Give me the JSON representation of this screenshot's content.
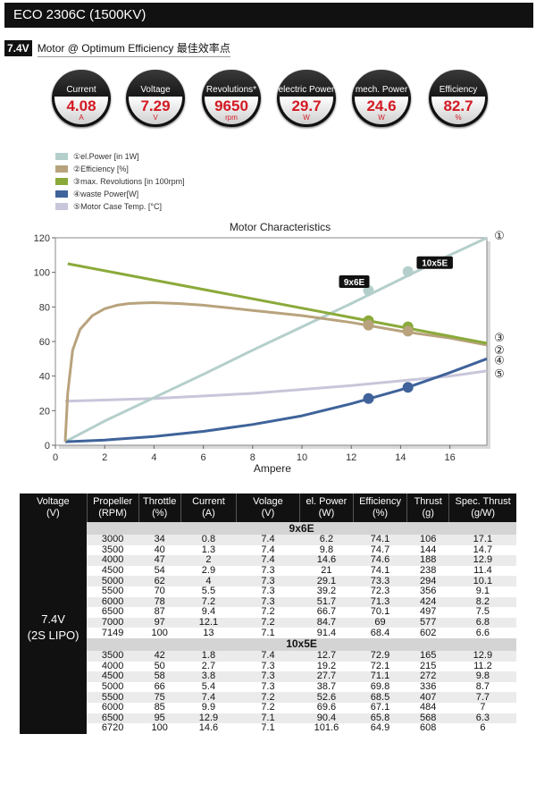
{
  "header": {
    "title": "ECO 2306C (1500KV)",
    "voltage_badge": "7.4V",
    "subtitle": "Motor @ Optimum Efficiency  最佳效率点"
  },
  "stats": [
    {
      "label": "Current",
      "value": "4.08",
      "unit": "A"
    },
    {
      "label": "Voltage",
      "value": "7.29",
      "unit": "V"
    },
    {
      "label": "Revolutions*",
      "value": "9650",
      "unit": "rpm"
    },
    {
      "label": "electric Power",
      "value": "29.7",
      "unit": "W"
    },
    {
      "label": "mech. Power",
      "value": "24.6",
      "unit": "W"
    },
    {
      "label": "Efficiency",
      "value": "82.7",
      "unit": "%"
    }
  ],
  "legend": [
    {
      "label": "①el.Power [in 1W]",
      "color": "#b4cfcb"
    },
    {
      "label": "②Efficiency [%]",
      "color": "#b8a37d"
    },
    {
      "label": "③max. Revolutions [in 100rpm]",
      "color": "#8aaa3a"
    },
    {
      "label": "④waste Power[W]",
      "color": "#3f639a"
    },
    {
      "label": "⑤Motor Case Temp. [°C]",
      "color": "#c8c6da"
    }
  ],
  "chart_data": {
    "type": "line",
    "title": "Motor Characteristics",
    "xlabel": "Ampere",
    "ylabel": "",
    "xlim": [
      0,
      17.5
    ],
    "ylim": [
      0,
      120
    ],
    "xticks": [
      0,
      2,
      4,
      6,
      8,
      10,
      12,
      14,
      16
    ],
    "yticks": [
      0,
      20,
      40,
      60,
      80,
      100,
      120
    ],
    "grid": false,
    "series": [
      {
        "name": "el.Power",
        "marker": "①",
        "color": "#b4cfcb",
        "x": [
          0.4,
          2,
          4,
          6,
          8,
          10,
          12,
          14,
          16,
          17.5
        ],
        "y": [
          2,
          14,
          27.5,
          41,
          55,
          68.5,
          82,
          96,
          110,
          120
        ]
      },
      {
        "name": "Efficiency",
        "marker": "②",
        "color": "#b8a37d",
        "x": [
          0.4,
          0.5,
          0.7,
          1.0,
          1.5,
          2.0,
          2.5,
          3.0,
          3.5,
          4,
          5,
          6,
          8,
          10,
          12,
          14,
          16,
          17.5
        ],
        "y": [
          2,
          30,
          55,
          67,
          75,
          79,
          81,
          82,
          82.3,
          82.5,
          82,
          81,
          78,
          75,
          71,
          66,
          62,
          58
        ]
      },
      {
        "name": "max. Revolutions",
        "marker": "③",
        "color": "#8aaa3a",
        "x": [
          0.5,
          17.5
        ],
        "y": [
          105,
          59
        ]
      },
      {
        "name": "waste Power",
        "marker": "④",
        "color": "#3f639a",
        "x": [
          0.4,
          2,
          4,
          6,
          8,
          10,
          12,
          14,
          16,
          17.5
        ],
        "y": [
          2,
          3,
          5,
          8,
          12,
          17,
          24,
          32,
          42,
          50
        ]
      },
      {
        "name": "Motor Case Temp.",
        "marker": "⑤",
        "color": "#c8c6da",
        "x": [
          0.4,
          4,
          8,
          12,
          16,
          17.5
        ],
        "y": [
          25.5,
          27,
          30,
          34.5,
          40,
          43
        ]
      }
    ],
    "points": [
      {
        "series": "el.Power",
        "x": 12.7,
        "y": 89.5,
        "label": "9x6E"
      },
      {
        "series": "el.Power",
        "x": 14.3,
        "y": 100.5,
        "label": "10x5E"
      },
      {
        "series": "max. Revolutions",
        "x": 12.7,
        "y": 72
      },
      {
        "series": "max. Revolutions",
        "x": 14.3,
        "y": 68.5
      },
      {
        "series": "Efficiency",
        "x": 12.7,
        "y": 69.5
      },
      {
        "series": "Efficiency",
        "x": 14.3,
        "y": 66
      },
      {
        "series": "waste Power",
        "x": 12.7,
        "y": 27
      },
      {
        "series": "waste Power",
        "x": 14.3,
        "y": 33.5
      }
    ]
  },
  "table": {
    "headers": [
      "Voltage (V)",
      "Propeller (RPM)",
      "Throttle (%)",
      "Current (A)",
      "Volage (V)",
      "el. Power (W)",
      "Efficiency (%)",
      "Thrust (g)",
      "Spec. Thrust (g/W)"
    ],
    "voltage_label": [
      "7.4V",
      "(2S LIPO)"
    ],
    "sections": [
      {
        "name": "9x6E",
        "rows": [
          [
            "3000",
            "34",
            "0.8",
            "7.4",
            "6.2",
            "74.1",
            "106",
            "17.1"
          ],
          [
            "3500",
            "40",
            "1.3",
            "7.4",
            "9.8",
            "74.7",
            "144",
            "14.7"
          ],
          [
            "4000",
            "47",
            "2",
            "7.4",
            "14.6",
            "74.6",
            "188",
            "12.9"
          ],
          [
            "4500",
            "54",
            "2.9",
            "7.3",
            "21",
            "74.1",
            "238",
            "11.4"
          ],
          [
            "5000",
            "62",
            "4",
            "7.3",
            "29.1",
            "73.3",
            "294",
            "10.1"
          ],
          [
            "5500",
            "70",
            "5.5",
            "7.3",
            "39.2",
            "72.3",
            "356",
            "9.1"
          ],
          [
            "6000",
            "78",
            "7.2",
            "7.3",
            "51.7",
            "71.3",
            "424",
            "8.2"
          ],
          [
            "6500",
            "87",
            "9.4",
            "7.2",
            "66.7",
            "70.1",
            "497",
            "7.5"
          ],
          [
            "7000",
            "97",
            "12.1",
            "7.2",
            "84.7",
            "69",
            "577",
            "6.8"
          ],
          [
            "7149",
            "100",
            "13",
            "7.1",
            "91.4",
            "68.4",
            "602",
            "6.6"
          ]
        ]
      },
      {
        "name": "10x5E",
        "rows": [
          [
            "3500",
            "42",
            "1.8",
            "7.4",
            "12.7",
            "72.9",
            "165",
            "12.9"
          ],
          [
            "4000",
            "50",
            "2.7",
            "7.3",
            "19.2",
            "72.1",
            "215",
            "11.2"
          ],
          [
            "4500",
            "58",
            "3.8",
            "7.3",
            "27.7",
            "71.1",
            "272",
            "9.8"
          ],
          [
            "5000",
            "66",
            "5.4",
            "7.3",
            "38.7",
            "69.8",
            "336",
            "8.7"
          ],
          [
            "5500",
            "75",
            "7.4",
            "7.2",
            "52.6",
            "68.5",
            "407",
            "7.7"
          ],
          [
            "6000",
            "85",
            "9.9",
            "7.2",
            "69.6",
            "67.1",
            "484",
            "7"
          ],
          [
            "6500",
            "95",
            "12.9",
            "7.1",
            "90.4",
            "65.8",
            "568",
            "6.3"
          ],
          [
            "6720",
            "100",
            "14.6",
            "7.1",
            "101.6",
            "64.9",
            "608",
            "6"
          ]
        ]
      }
    ]
  }
}
